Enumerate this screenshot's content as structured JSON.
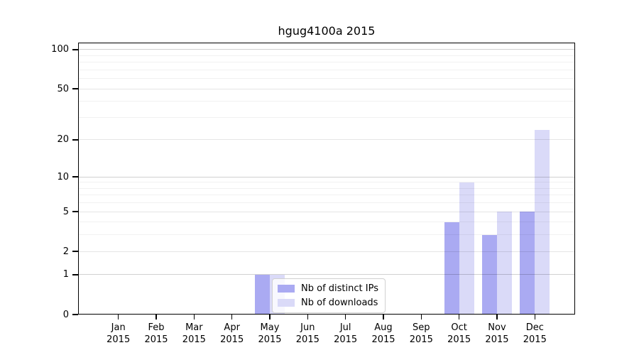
{
  "title": "hgug4100a 2015",
  "colors": {
    "background": "#ffffff",
    "bar_distinct_ips": "#aaaaf2",
    "bar_downloads": "#dadaf8",
    "axis": "#000000",
    "grid_decade": "rgba(0,0,0,0.18)",
    "grid_labeled": "rgba(0,0,0,0.10)",
    "grid_minor": "rgba(0,0,0,0.055)",
    "legend_border": "#d0d0d0"
  },
  "chart_data": {
    "type": "bar",
    "title": "hgug4100a 2015",
    "x_categories": [
      "Jan",
      "Feb",
      "Mar",
      "Apr",
      "May",
      "Jun",
      "Jul",
      "Aug",
      "Sep",
      "Oct",
      "Nov",
      "Dec"
    ],
    "x_year": "2015",
    "series": [
      {
        "name": "Nb of distinct IPs",
        "color": "#aaaaf2",
        "values": [
          0,
          0,
          0,
          0,
          1,
          0,
          0,
          0,
          0,
          4,
          3,
          5
        ]
      },
      {
        "name": "Nb of downloads",
        "color": "#dadaf8",
        "values": [
          0,
          0,
          0,
          0,
          1,
          0,
          0,
          0,
          0,
          9,
          5,
          24
        ]
      }
    ],
    "y_scale": "log1p",
    "y_ticks": [
      0,
      1,
      2,
      5,
      10,
      20,
      50,
      100
    ],
    "ylim": [
      0,
      113
    ],
    "grid": true,
    "grid_decade_values": [
      1,
      10,
      100
    ],
    "grid_labeled_values": [
      2,
      5,
      20,
      50
    ],
    "grid_minor_values": [
      3,
      4,
      6,
      7,
      8,
      9,
      30,
      40,
      60,
      70,
      80,
      90
    ],
    "legend_position": "lower center"
  }
}
